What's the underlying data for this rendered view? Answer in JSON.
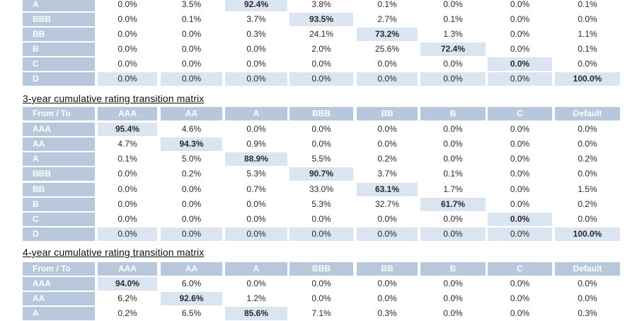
{
  "columns": [
    "From / To",
    "AAA",
    "AA",
    "A",
    "BBB",
    "BB",
    "B",
    "C",
    "Default"
  ],
  "top_partial": {
    "rows": [
      {
        "label": "A",
        "values": [
          "0.0%",
          "3.5%",
          "92.4%",
          "3.8%",
          "0.1%",
          "0.0%",
          "0.0%",
          "0.1%"
        ],
        "diag": 2
      },
      {
        "label": "BBB",
        "values": [
          "0.0%",
          "0.1%",
          "3.7%",
          "93.5%",
          "2.7%",
          "0.1%",
          "0.0%",
          "0.0%"
        ],
        "diag": 3
      },
      {
        "label": "BB",
        "values": [
          "0.0%",
          "0.0%",
          "0.3%",
          "24.1%",
          "73.2%",
          "1.3%",
          "0.0%",
          "1.1%"
        ],
        "diag": 4
      },
      {
        "label": "B",
        "values": [
          "0.0%",
          "0.0%",
          "0.0%",
          "2.0%",
          "25.6%",
          "72.4%",
          "0.0%",
          "0.1%"
        ],
        "diag": 5
      },
      {
        "label": "C",
        "values": [
          "0.0%",
          "0.0%",
          "0.0%",
          "0.0%",
          "0.0%",
          "0.0%",
          "0.0%",
          "0.0%"
        ],
        "diag": 6
      },
      {
        "label": "D",
        "values": [
          "0.0%",
          "0.0%",
          "0.0%",
          "0.0%",
          "0.0%",
          "0.0%",
          "0.0%",
          "100.0%"
        ],
        "diag": 7
      }
    ]
  },
  "three_year": {
    "title": "3-year cumulative rating transition matrix",
    "rows": [
      {
        "label": "AAA",
        "values": [
          "95.4%",
          "4.6%",
          "0.0%",
          "0.0%",
          "0.0%",
          "0.0%",
          "0.0%",
          "0.0%"
        ],
        "diag": 0
      },
      {
        "label": "AA",
        "values": [
          "4.7%",
          "94.3%",
          "0.9%",
          "0.0%",
          "0.0%",
          "0.0%",
          "0.0%",
          "0.0%"
        ],
        "diag": 1
      },
      {
        "label": "A",
        "values": [
          "0.1%",
          "5.0%",
          "88.9%",
          "5.5%",
          "0.2%",
          "0.0%",
          "0.0%",
          "0.2%"
        ],
        "diag": 2
      },
      {
        "label": "BBB",
        "values": [
          "0.0%",
          "0.2%",
          "5.3%",
          "90.7%",
          "3.7%",
          "0.1%",
          "0.0%",
          "0.0%"
        ],
        "diag": 3
      },
      {
        "label": "BB",
        "values": [
          "0.0%",
          "0.0%",
          "0.7%",
          "33.0%",
          "63.1%",
          "1.7%",
          "0.0%",
          "1.5%"
        ],
        "diag": 4
      },
      {
        "label": "B",
        "values": [
          "0.0%",
          "0.0%",
          "0.0%",
          "5.3%",
          "32.7%",
          "61.7%",
          "0.0%",
          "0.2%"
        ],
        "diag": 5
      },
      {
        "label": "C",
        "values": [
          "0.0%",
          "0.0%",
          "0.0%",
          "0.0%",
          "0.0%",
          "0.0%",
          "0.0%",
          "0.0%"
        ],
        "diag": 6
      },
      {
        "label": "D",
        "values": [
          "0.0%",
          "0.0%",
          "0.0%",
          "0.0%",
          "0.0%",
          "0.0%",
          "0.0%",
          "100.0%"
        ],
        "diag": 7
      }
    ]
  },
  "four_year": {
    "title": "4-year cumulative rating transition matrix",
    "rows": [
      {
        "label": "AAA",
        "values": [
          "94.0%",
          "6.0%",
          "0.0%",
          "0.0%",
          "0.0%",
          "0.0%",
          "0.0%",
          "0.0%"
        ],
        "diag": 0
      },
      {
        "label": "AA",
        "values": [
          "6.2%",
          "92.6%",
          "1.2%",
          "0.0%",
          "0.0%",
          "0.0%",
          "0.0%",
          "0.0%"
        ],
        "diag": 1
      },
      {
        "label": "A",
        "values": [
          "0.2%",
          "6.5%",
          "85.6%",
          "7.1%",
          "0.3%",
          "0.0%",
          "0.0%",
          "0.3%"
        ],
        "diag": 2
      }
    ]
  },
  "colors": {
    "header_bg": "#b7c8dc",
    "highlight_bg": "#dbe5f1"
  }
}
